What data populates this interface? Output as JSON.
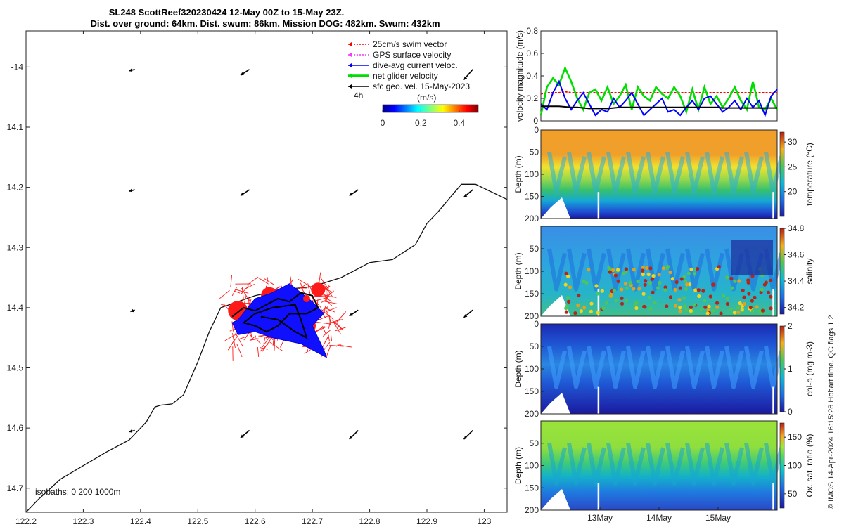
{
  "title": {
    "line1": "SL248 ScottReef320230424 12-May 00Z to 15-May 23Z.",
    "line2": "Dist. over ground: 64km. Dist. swum: 86km. Mission DOG: 482km. Swum: 432km"
  },
  "map": {
    "xticks": [
      122.2,
      122.3,
      122.4,
      122.5,
      122.6,
      122.7,
      122.8,
      122.9,
      123
    ],
    "xtick_labels": [
      "122.2",
      "122.3",
      "122.4",
      "122.5",
      "122.6",
      "122.7",
      "122.8",
      "122.9",
      "123"
    ],
    "yticks": [
      -14,
      14.1,
      14.2,
      14.3,
      14.4,
      14.5,
      14.6,
      14.7
    ],
    "ytick_labels": [
      "-14",
      "14.1",
      "14.2",
      "14.3",
      "14.4",
      "14.5",
      "14.6",
      "14.7"
    ],
    "xlim": [
      122.2,
      123.04
    ],
    "ylim": [
      -13.94,
      -14.74
    ],
    "isobaths_label": "isobaths: 0   200  1000m",
    "legend": [
      {
        "label": "25cm/s swim vector",
        "color": "#ff0000",
        "style": "dotted"
      },
      {
        "label": "GPS surface velocity",
        "color": "#ff33ff",
        "style": "dotted"
      },
      {
        "label": "dive-avg current veloc.",
        "color": "#0000ff",
        "style": "solid"
      },
      {
        "label": "net glider velocity",
        "color": "#00dd00",
        "style": "thick"
      },
      {
        "label": "sfc geo. vel. 15-May-2023",
        "color": "#000000",
        "style": "solid"
      }
    ],
    "time_step_label": "4h",
    "colorbar": {
      "title": "(m/s)",
      "tick_labels": [
        "0",
        "0.2",
        "0.4"
      ],
      "ticks": [
        0,
        0.2,
        0.4
      ],
      "range": [
        0,
        0.5
      ]
    },
    "isobath_line": [
      [
        122.2,
        -14.74
      ],
      [
        122.22,
        -14.72
      ],
      [
        122.26,
        -14.685
      ],
      [
        122.34,
        -14.64
      ],
      [
        122.38,
        -14.62
      ],
      [
        122.41,
        -14.59
      ],
      [
        122.425,
        -14.565
      ],
      [
        122.435,
        -14.562
      ],
      [
        122.455,
        -14.56
      ],
      [
        122.475,
        -14.545
      ],
      [
        122.5,
        -14.49
      ],
      [
        122.52,
        -14.44
      ],
      [
        122.54,
        -14.4
      ],
      [
        122.6,
        -14.38
      ],
      [
        122.65,
        -14.37
      ],
      [
        122.7,
        -14.365
      ],
      [
        122.75,
        -14.35
      ],
      [
        122.8,
        -14.325
      ],
      [
        122.84,
        -14.32
      ],
      [
        122.88,
        -14.295
      ],
      [
        122.9,
        -14.26
      ],
      [
        122.92,
        -14.24
      ],
      [
        122.96,
        -14.195
      ],
      [
        122.985,
        -14.195
      ],
      [
        123.04,
        -14.22
      ]
    ],
    "geo_vectors": [
      {
        "lon": 122.39,
        "lat": -14.004,
        "u": 0.02,
        "v": 0.005
      },
      {
        "lon": 122.59,
        "lat": -14.004,
        "u": 0.03,
        "v": 0.02
      },
      {
        "lon": 122.98,
        "lat": -14.004,
        "u": 0.03,
        "v": 0.035
      },
      {
        "lon": 122.39,
        "lat": -14.204,
        "u": 0.02,
        "v": 0.005
      },
      {
        "lon": 122.59,
        "lat": -14.204,
        "u": 0.03,
        "v": 0.02
      },
      {
        "lon": 122.78,
        "lat": -14.204,
        "u": 0.03,
        "v": 0.02
      },
      {
        "lon": 122.98,
        "lat": -14.204,
        "u": 0.03,
        "v": 0.025
      },
      {
        "lon": 122.39,
        "lat": -14.404,
        "u": 0.015,
        "v": 0.005
      },
      {
        "lon": 122.78,
        "lat": -14.404,
        "u": 0.03,
        "v": 0.02
      },
      {
        "lon": 122.98,
        "lat": -14.404,
        "u": 0.03,
        "v": 0.025
      },
      {
        "lon": 122.39,
        "lat": -14.604,
        "u": 0.02,
        "v": 0.005
      },
      {
        "lon": 122.59,
        "lat": -14.604,
        "u": 0.03,
        "v": 0.025
      },
      {
        "lon": 122.78,
        "lat": -14.604,
        "u": 0.03,
        "v": 0.03
      },
      {
        "lon": 122.98,
        "lat": -14.604,
        "u": 0.03,
        "v": 0.03
      }
    ],
    "blue_patch": [
      [
        122.57,
        -14.42
      ],
      [
        122.6,
        -14.385
      ],
      [
        122.63,
        -14.375
      ],
      [
        122.66,
        -14.36
      ],
      [
        122.7,
        -14.39
      ],
      [
        122.72,
        -14.41
      ],
      [
        122.7,
        -14.43
      ],
      [
        122.72,
        -14.47
      ],
      [
        122.725,
        -14.483
      ],
      [
        122.68,
        -14.46
      ],
      [
        122.63,
        -14.45
      ],
      [
        122.6,
        -14.44
      ],
      [
        122.57,
        -14.445
      ],
      [
        122.56,
        -14.425
      ]
    ],
    "glider_track": [
      [
        122.56,
        -14.415
      ],
      [
        122.58,
        -14.4
      ],
      [
        122.6,
        -14.405
      ],
      [
        122.62,
        -14.395
      ],
      [
        122.64,
        -14.385
      ],
      [
        122.66,
        -14.39
      ],
      [
        122.68,
        -14.375
      ],
      [
        122.7,
        -14.38
      ],
      [
        122.71,
        -14.4
      ],
      [
        122.69,
        -14.41
      ],
      [
        122.66,
        -14.41
      ],
      [
        122.64,
        -14.43
      ],
      [
        122.62,
        -14.44
      ],
      [
        122.6,
        -14.43
      ],
      [
        122.58,
        -14.425
      ],
      [
        122.6,
        -14.41
      ],
      [
        122.63,
        -14.4
      ],
      [
        122.67,
        -14.395
      ],
      [
        122.68,
        -14.42
      ],
      [
        122.69,
        -14.45
      ],
      [
        122.67,
        -14.44
      ],
      [
        122.64,
        -14.42
      ],
      [
        122.61,
        -14.415
      ]
    ]
  },
  "velocity_panel": {
    "ylabel": "velocity magnitude (m/s)",
    "ylim": [
      0,
      0.8
    ],
    "yticks": [
      0,
      0.2,
      0.4,
      0.6,
      0.8
    ],
    "ytick_labels": [
      "0",
      "0.2",
      "0.4",
      "0.6",
      "0.8"
    ],
    "series": [
      {
        "name": "25cm/s swim vector",
        "color": "#ff0000",
        "values": [
          0.24,
          0.25,
          0.25,
          0.25,
          0.26,
          0.25,
          0.25,
          0.25,
          0.25,
          0.25,
          0.25,
          0.25,
          0.25,
          0.25,
          0.25,
          0.25,
          0.25,
          0.25,
          0.25,
          0.25,
          0.25,
          0.25,
          0.25,
          0.25,
          0.25,
          0.25,
          0.25,
          0.25,
          0.25,
          0.25,
          0.25,
          0.25,
          0.25,
          0.25,
          0.25,
          0.25,
          0.25,
          0.25,
          0.25,
          0.25
        ]
      },
      {
        "name": "net glider velocity",
        "color": "#00dd00",
        "values": [
          0.05,
          0.3,
          0.38,
          0.32,
          0.47,
          0.35,
          0.2,
          0.1,
          0.25,
          0.28,
          0.18,
          0.3,
          0.15,
          0.22,
          0.32,
          0.1,
          0.3,
          0.22,
          0.18,
          0.3,
          0.24,
          0.2,
          0.3,
          0.22,
          0.08,
          0.28,
          0.1,
          0.3,
          0.15,
          0.22,
          0.12,
          0.2,
          0.3,
          0.18,
          0.1,
          0.35,
          0.12,
          0.1,
          0.2,
          0.1
        ]
      },
      {
        "name": "dive-avg current veloc.",
        "color": "#0000ff",
        "values": [
          0.15,
          0.1,
          0.25,
          0.35,
          0.2,
          0.1,
          0.18,
          0.25,
          0.15,
          0.05,
          0.1,
          0.08,
          0.2,
          0.12,
          0.18,
          0.25,
          0.15,
          0.05,
          0.1,
          0.15,
          0.2,
          0.08,
          0.1,
          0.05,
          0.12,
          0.18,
          0.1,
          0.2,
          0.22,
          0.15,
          0.08,
          0.12,
          0.18,
          0.1,
          0.2,
          0.12,
          0.18,
          0.05,
          0.22,
          0.28
        ]
      },
      {
        "name": "sfc geo. vel.",
        "color": "#000000",
        "values": [
          0.13,
          0.13,
          0.13,
          0.13,
          0.125,
          0.12,
          0.12,
          0.115,
          0.11,
          0.11,
          0.11,
          0.11,
          0.115,
          0.12,
          0.12,
          0.12,
          0.12,
          0.12,
          0.12,
          0.12,
          0.12,
          0.12,
          0.12,
          0.12,
          0.12,
          0.12,
          0.12,
          0.12,
          0.12,
          0.12,
          0.115,
          0.115,
          0.115,
          0.115,
          0.115,
          0.115,
          0.115,
          0.115,
          0.115,
          0.115
        ]
      }
    ]
  },
  "sections": [
    {
      "id": "temperature",
      "ylabel": "Depth (m)",
      "cbar_label": "temperature (°C)",
      "cbar_ticks": [
        20,
        25,
        30
      ],
      "cbar_tick_labels": [
        "20",
        "25",
        "30"
      ],
      "cbar_range": [
        15,
        32
      ],
      "ytick_labels": [
        "0",
        "50",
        "100",
        "150",
        "200"
      ]
    },
    {
      "id": "salinity",
      "ylabel": "Depth (m)",
      "cbar_label": "salinity",
      "cbar_ticks": [
        34.2,
        34.4,
        34.6,
        34.8
      ],
      "cbar_tick_labels": [
        "34.2",
        "34.4",
        "34.6",
        "34.8"
      ],
      "cbar_range": [
        34.15,
        34.8
      ],
      "ytick_labels": [
        "50",
        "100",
        "150",
        "200"
      ]
    },
    {
      "id": "chla",
      "ylabel": "Depth (m)",
      "cbar_label": "chl-a (mg m-3)",
      "cbar_ticks": [
        0,
        1,
        2
      ],
      "cbar_tick_labels": [
        "0",
        "1",
        "2"
      ],
      "cbar_range": [
        0,
        2
      ],
      "ytick_labels": [
        "0",
        "50",
        "100",
        "150",
        "200"
      ]
    },
    {
      "id": "oxygen",
      "ylabel": "Depth (m)",
      "cbar_label": "Ox. sat. ratio (%)",
      "cbar_ticks": [
        50,
        100,
        150
      ],
      "cbar_tick_labels": [
        "50",
        "100",
        "150"
      ],
      "cbar_range": [
        25,
        175
      ],
      "ytick_labels": [
        "50",
        "100",
        "150",
        "200"
      ]
    }
  ],
  "time_axis": {
    "labels": [
      "13May",
      "14May",
      "15May"
    ]
  },
  "footer": {
    "credit": "© IMOS 14-Apr-2024 16:15:28 Hobart time. QC flags 1  2"
  }
}
